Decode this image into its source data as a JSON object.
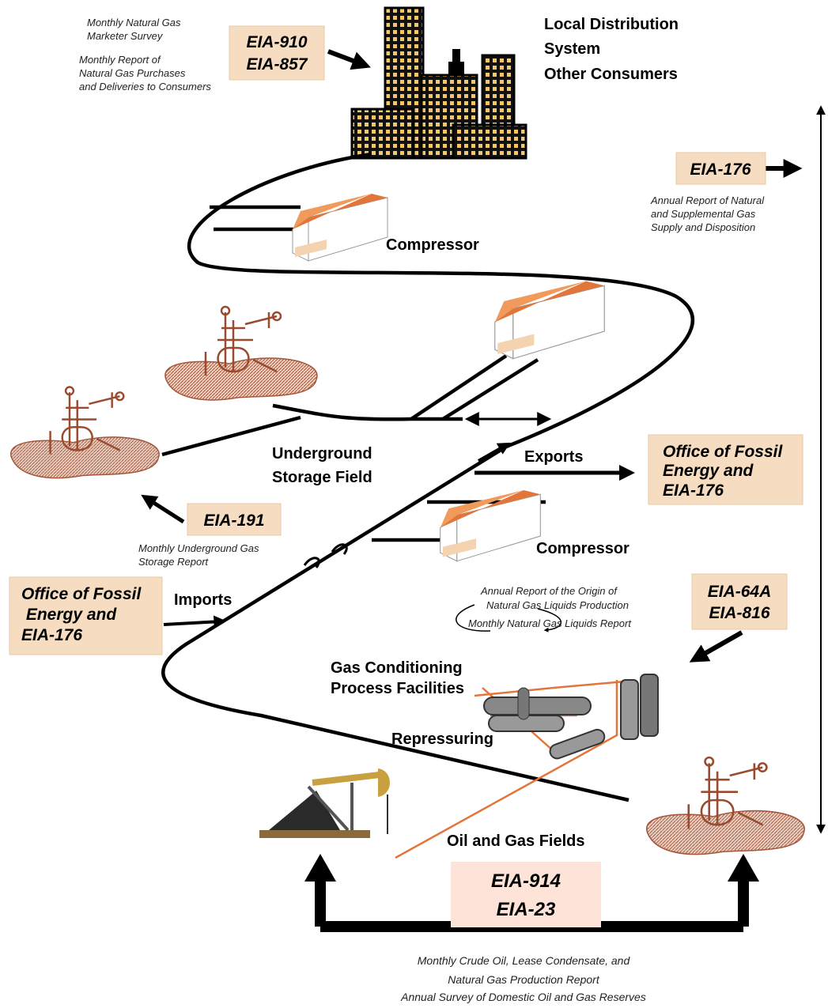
{
  "diagram": {
    "marketer_note": [
      "Monthly Natural Gas",
      "Marketer Survey"
    ],
    "purchases_note": [
      "Monthly Report of",
      "Natural Gas Purchases",
      "and Deliveries to Consumers"
    ],
    "box_910": [
      "EIA-910",
      "EIA-857"
    ],
    "local_distribution": [
      "Local Distribution",
      "System",
      "Other Consumers"
    ],
    "box_176": [
      "EIA-176"
    ],
    "supply_note": [
      "Annual Report of Natural",
      "and Supplemental Gas",
      "Supply and Disposition"
    ],
    "compressor_top": "Compressor",
    "storage_field": [
      "Underground",
      "Storage Field"
    ],
    "exports": "Exports",
    "box_exports": [
      "Office of Fossil",
      "Energy and",
      "EIA-176"
    ],
    "box_191": [
      "EIA-191"
    ],
    "storage_note": [
      "Monthly Underground Gas",
      "Storage Report"
    ],
    "compressor_mid": "Compressor",
    "box_imports": [
      "Office of Fossil",
      " Energy and",
      "EIA-176"
    ],
    "imports": "Imports",
    "liquids_note": [
      "Annual Report of the Origin of",
      "Natural Gas Liquids Production",
      "Monthly Natural Gas Liquids Report"
    ],
    "box_64a": [
      "EIA-64A",
      "EIA-816"
    ],
    "gas_conditioning": [
      "Gas Conditioning",
      "Process Facilities"
    ],
    "repressuring": "Repressuring",
    "fields": "Oil and Gas Fields",
    "box_914": [
      "EIA-914",
      "EIA-23"
    ],
    "production_note": [
      "Monthly Crude Oil, Lease Condensate, and",
      "Natural Gas Production Report",
      "Annual Survey of Domestic Oil and Gas Reserves"
    ]
  }
}
